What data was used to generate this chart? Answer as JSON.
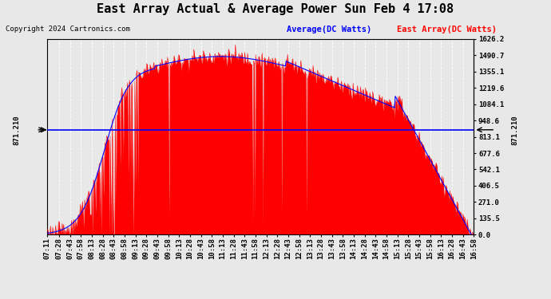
{
  "title": "East Array Actual & Average Power Sun Feb 4 17:08",
  "copyright": "Copyright 2024 Cartronics.com",
  "legend_average": "Average(DC Watts)",
  "legend_east": "East Array(DC Watts)",
  "legend_average_color": "blue",
  "legend_east_color": "red",
  "ylabel_right_values": [
    1626.2,
    1490.7,
    1355.1,
    1219.6,
    1084.1,
    948.6,
    813.1,
    677.6,
    542.1,
    406.5,
    271.0,
    135.5,
    0.0
  ],
  "ymax": 1626.2,
  "ymin": 0.0,
  "hline_value": 871.21,
  "hline_label": "871.210",
  "background_color": "#e8e8e8",
  "plot_bg_color": "#e8e8e8",
  "grid_color": "#ffffff",
  "fill_color": "red",
  "line_color": "red",
  "avg_line_color": "blue",
  "time_start_minutes": 431,
  "time_end_minutes": 1018,
  "tick_interval_minutes": 15,
  "x_tick_labels": [
    "07:11",
    "07:28",
    "07:43",
    "07:58",
    "08:13",
    "08:28",
    "08:43",
    "08:58",
    "09:13",
    "09:28",
    "09:43",
    "09:58",
    "10:13",
    "10:28",
    "10:43",
    "10:58",
    "11:13",
    "11:28",
    "11:43",
    "11:58",
    "12:13",
    "12:28",
    "12:43",
    "12:58",
    "13:13",
    "13:28",
    "13:43",
    "13:58",
    "14:13",
    "14:28",
    "14:43",
    "14:58",
    "15:13",
    "15:28",
    "15:43",
    "15:58",
    "16:13",
    "16:28",
    "16:43",
    "16:58"
  ],
  "x_tick_positions_minutes": [
    431,
    448,
    463,
    478,
    493,
    508,
    523,
    538,
    553,
    568,
    583,
    598,
    613,
    628,
    643,
    658,
    673,
    688,
    703,
    718,
    733,
    748,
    763,
    778,
    793,
    808,
    823,
    838,
    853,
    868,
    883,
    898,
    913,
    928,
    943,
    958,
    973,
    988,
    1003,
    1018
  ],
  "title_fontsize": 11,
  "tick_fontsize": 6.5,
  "copyright_fontsize": 6.5,
  "legend_fontsize": 7.5
}
